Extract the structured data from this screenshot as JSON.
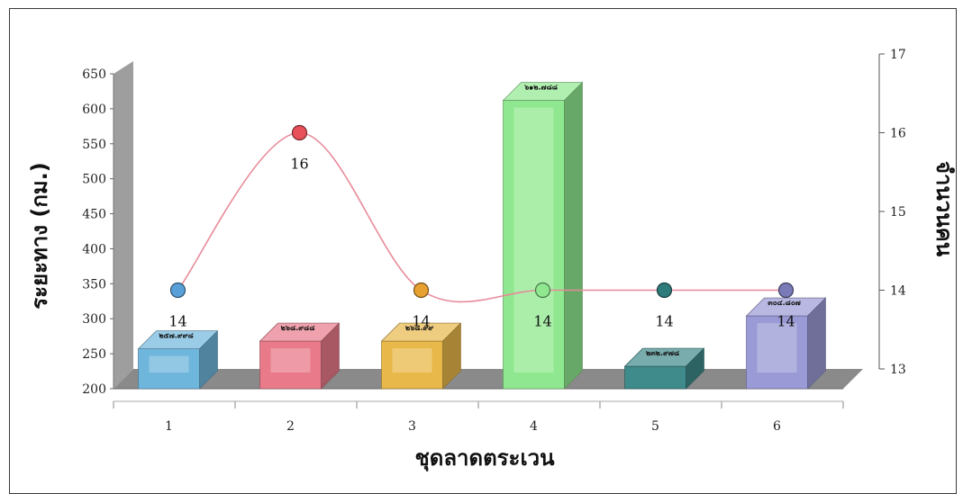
{
  "chart_data": {
    "type": "bar",
    "categories": [
      "1",
      "2",
      "3",
      "4",
      "5",
      "6"
    ],
    "xlabel": "ชุดลาดตระเวน",
    "ylabel": "ระยะทาง (กม.)",
    "y2label": "จำนวนคน",
    "ylim": [
      200,
      650
    ],
    "y2lim": [
      13,
      17
    ],
    "yticks": [
      "200",
      "250",
      "300",
      "350",
      "400",
      "450",
      "500",
      "550",
      "600",
      "650"
    ],
    "y2ticks": [
      "13",
      "14",
      "15",
      "16",
      "17"
    ],
    "series": [
      {
        "type": "bar",
        "axis": "left",
        "values": [
          257,
          268,
          268,
          612,
          232,
          304
        ],
        "labels": [
          "๒๕๗.๙๙๘",
          "๒๖๘.๙๘๘",
          "๒๖๘.๙๙",
          "๖๑๒.๗๘๘",
          "๒๓๒.๙๗๘",
          "๓๐๔.๘๐๗"
        ],
        "colors": [
          "#6fb6dc",
          "#e87a8a",
          "#e8b84a",
          "#8fe88f",
          "#3f8a8a",
          "#9a9ad6"
        ]
      },
      {
        "type": "line",
        "axis": "right",
        "values": [
          14,
          16,
          14,
          14,
          14,
          14
        ],
        "labels": [
          "14",
          "16",
          "14",
          "14",
          "14",
          "14"
        ],
        "line_color": "#e88a9a",
        "marker_colors": [
          "#5aa0d8",
          "#e8505a",
          "#e8a030",
          "#8fe88f",
          "#2f7a7a",
          "#7a7ab8"
        ]
      }
    ],
    "grid": false,
    "style": "3d"
  }
}
